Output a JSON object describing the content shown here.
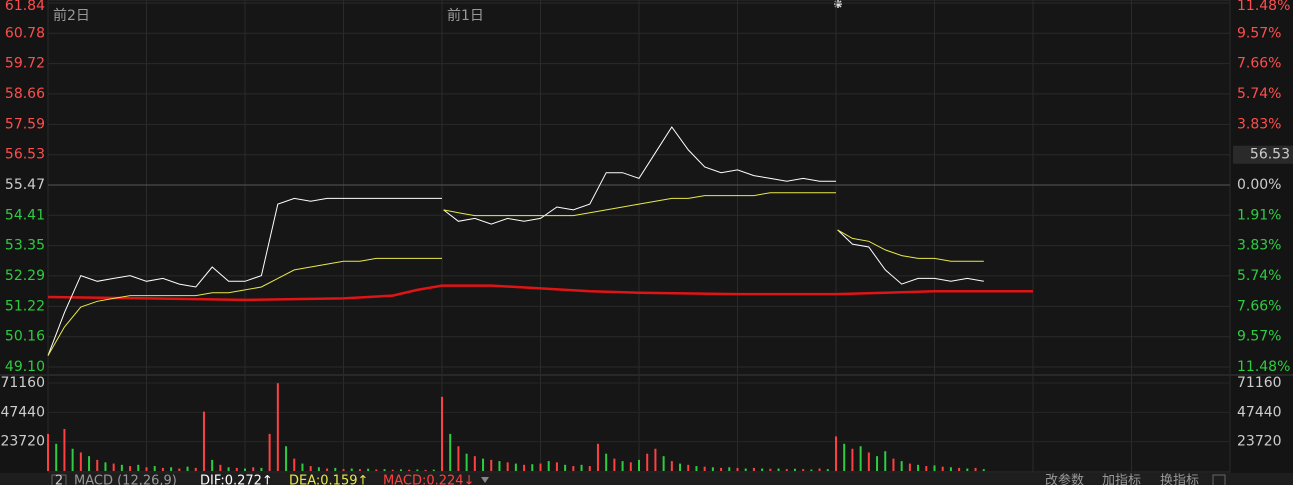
{
  "chart_data": [
    {
      "type": "line",
      "xlim": [
        0,
        720
      ],
      "xticks": [
        0,
        60,
        120,
        180,
        240,
        300,
        360,
        420,
        480,
        540,
        600,
        660,
        720
      ],
      "ylim": [
        49.1,
        61.84
      ],
      "yticks": [
        61.84,
        60.78,
        59.72,
        58.66,
        57.59,
        56.53,
        55.47,
        54.41,
        53.35,
        52.29,
        51.22,
        50.16,
        {
          "value": 49.1,
          "label": "49.10"
        }
      ],
      "y2lim": [
        -11.48,
        11.48
      ],
      "y2ticks": [
        {
          "value": 11.48,
          "label": "11.48%"
        },
        {
          "value": 9.57,
          "label": "9.57%"
        },
        {
          "value": 7.66,
          "label": "7.66%"
        },
        {
          "value": 5.74,
          "label": "5.74%"
        },
        {
          "value": 3.83,
          "label": "3.83%"
        },
        {
          "value": 1.91,
          "label": "1.91%"
        },
        {
          "value": 0,
          "label": "0.00%"
        },
        {
          "value": -1.91,
          "label": "1.91%"
        },
        {
          "value": -3.83,
          "label": "3.83%"
        },
        {
          "value": -5.74,
          "label": "5.74%"
        },
        {
          "value": -7.66,
          "label": "7.66%"
        },
        {
          "value": -9.57,
          "label": "9.57%"
        },
        {
          "value": -11.48,
          "label": "11.48%"
        }
      ],
      "annotations": [
        {
          "text": "前2日",
          "x": 0
        },
        {
          "text": "前1日",
          "x": 240
        }
      ],
      "current_price": 56.53,
      "series": [
        {
          "color": "#ffffff",
          "x": [
            0,
            10,
            20,
            30,
            40,
            50,
            60,
            70,
            80,
            90,
            100,
            110,
            120,
            130,
            140,
            150,
            160,
            170,
            180,
            190,
            200,
            210,
            220,
            230,
            240
          ],
          "values": [
            49.5,
            51.0,
            52.3,
            52.1,
            52.2,
            52.3,
            52.1,
            52.2,
            52.0,
            51.9,
            52.6,
            52.1,
            52.1,
            52.3,
            54.8,
            55.0,
            54.9,
            55.0,
            55.0,
            55.0,
            55.0,
            55.0,
            55.0,
            55.0,
            55.0
          ]
        },
        {
          "color": "#e8e84a",
          "x": [
            0,
            10,
            20,
            30,
            40,
            50,
            60,
            70,
            80,
            90,
            100,
            110,
            120,
            130,
            140,
            150,
            160,
            170,
            180,
            190,
            200,
            210,
            220,
            230,
            240
          ],
          "values": [
            49.5,
            50.5,
            51.2,
            51.4,
            51.5,
            51.6,
            51.6,
            51.6,
            51.6,
            51.6,
            51.7,
            51.7,
            51.8,
            51.9,
            52.2,
            52.5,
            52.6,
            52.7,
            52.8,
            52.8,
            52.9,
            52.9,
            52.9,
            52.9,
            52.9
          ]
        },
        {
          "color": "#ffffff",
          "x": [
            241,
            250,
            260,
            270,
            280,
            290,
            300,
            310,
            320,
            330,
            340,
            350,
            360,
            370,
            380,
            390,
            400,
            410,
            420,
            430,
            440,
            450,
            460,
            470,
            480
          ],
          "values": [
            54.6,
            54.2,
            54.3,
            54.1,
            54.3,
            54.2,
            54.3,
            54.7,
            54.6,
            54.8,
            55.9,
            55.9,
            55.7,
            56.6,
            57.5,
            56.7,
            56.1,
            55.9,
            56.0,
            55.8,
            55.7,
            55.6,
            55.7,
            55.6,
            55.6
          ]
        },
        {
          "color": "#e8e84a",
          "x": [
            241,
            250,
            260,
            270,
            280,
            290,
            300,
            310,
            320,
            330,
            340,
            350,
            360,
            370,
            380,
            390,
            400,
            410,
            420,
            430,
            440,
            450,
            460,
            470,
            480
          ],
          "values": [
            54.6,
            54.5,
            54.4,
            54.4,
            54.4,
            54.4,
            54.4,
            54.4,
            54.4,
            54.5,
            54.6,
            54.7,
            54.8,
            54.9,
            55.0,
            55.0,
            55.1,
            55.1,
            55.1,
            55.1,
            55.2,
            55.2,
            55.2,
            55.2,
            55.2
          ]
        },
        {
          "color": "#ffffff",
          "x": [
            481,
            490,
            500,
            510,
            520,
            530,
            540,
            550,
            560,
            570
          ],
          "values": [
            53.9,
            53.4,
            53.3,
            52.5,
            52.0,
            52.2,
            52.2,
            52.1,
            52.2,
            52.1
          ]
        },
        {
          "color": "#e8e84a",
          "x": [
            481,
            490,
            500,
            510,
            520,
            530,
            540,
            550,
            560,
            570
          ],
          "values": [
            53.9,
            53.6,
            53.5,
            53.2,
            53.0,
            52.9,
            52.9,
            52.8,
            52.8,
            52.8
          ]
        }
      ],
      "moving_average": {
        "color": "#e01414",
        "x": [
          0,
          60,
          120,
          180,
          210,
          225,
          240,
          270,
          300,
          330,
          360,
          420,
          480,
          540,
          600
        ],
        "values": [
          51.55,
          51.5,
          51.45,
          51.5,
          51.6,
          51.8,
          51.95,
          51.95,
          51.85,
          51.75,
          51.7,
          51.65,
          51.65,
          51.75,
          51.75
        ]
      }
    },
    {
      "type": "bar",
      "xlim": [
        0,
        720
      ],
      "ylim": [
        0,
        71160
      ],
      "yticks": [
        71160,
        47440,
        23720
      ],
      "series": [
        {
          "color": "#ff4040",
          "x": [
            0,
            10,
            20,
            30,
            40,
            50,
            60,
            70,
            80,
            90,
            95,
            105,
            115,
            125,
            135,
            140,
            150,
            160,
            170,
            180,
            190,
            200,
            210,
            220,
            230,
            240,
            250,
            260,
            270,
            280,
            290,
            300,
            310,
            320,
            330,
            335,
            345,
            355,
            365,
            370,
            380,
            390,
            400,
            410,
            420,
            430,
            440,
            450,
            460,
            470,
            480,
            490,
            500,
            515,
            525,
            535,
            545,
            555,
            565
          ],
          "values": [
            30000,
            34000,
            15000,
            9000,
            6000,
            4000,
            3000,
            2500,
            2000,
            2500,
            48000,
            5000,
            2500,
            3000,
            30000,
            71000,
            10000,
            4000,
            2000,
            1500,
            1500,
            1200,
            1000,
            1000,
            900,
            60000,
            20000,
            12000,
            9000,
            7000,
            5000,
            6000,
            7000,
            4000,
            4000,
            22000,
            10000,
            7000,
            14000,
            18000,
            8000,
            5000,
            3500,
            2500,
            2500,
            2500,
            1800,
            1500,
            1500,
            2000,
            28000,
            18000,
            15000,
            10000,
            6000,
            4000,
            3500,
            2500,
            2500
          ]
        },
        {
          "color": "#2ecc40",
          "x": [
            5,
            15,
            25,
            35,
            45,
            55,
            65,
            75,
            85,
            100,
            110,
            120,
            130,
            145,
            155,
            165,
            175,
            185,
            195,
            205,
            215,
            225,
            235,
            245,
            255,
            265,
            275,
            285,
            295,
            305,
            315,
            325,
            340,
            350,
            360,
            375,
            385,
            395,
            405,
            415,
            425,
            435,
            445,
            455,
            465,
            475,
            485,
            495,
            505,
            510,
            520,
            530,
            540,
            550,
            560,
            570
          ],
          "values": [
            22000,
            18000,
            12000,
            7000,
            5000,
            5000,
            4000,
            3000,
            3500,
            9000,
            3000,
            2000,
            2500,
            20000,
            6000,
            3000,
            2500,
            2000,
            1800,
            1500,
            1300,
            1200,
            1100,
            30000,
            14000,
            10000,
            8000,
            6000,
            5500,
            8000,
            5000,
            5000,
            14000,
            8000,
            9000,
            12000,
            6000,
            4000,
            3000,
            3000,
            2000,
            2000,
            2000,
            1800,
            1200,
            1500,
            22000,
            20000,
            12000,
            16000,
            8000,
            5000,
            4500,
            3000,
            2000,
            1500
          ]
        }
      ]
    }
  ],
  "indicator_bar": {
    "index": "2",
    "name": "MACD (12,26,9)",
    "dif": "DIF:0.272↑",
    "dea": "DEA:0.159↑",
    "macd": "MACD:0.224↓",
    "buttons": [
      "改参数",
      "加指标",
      "换指标"
    ]
  }
}
